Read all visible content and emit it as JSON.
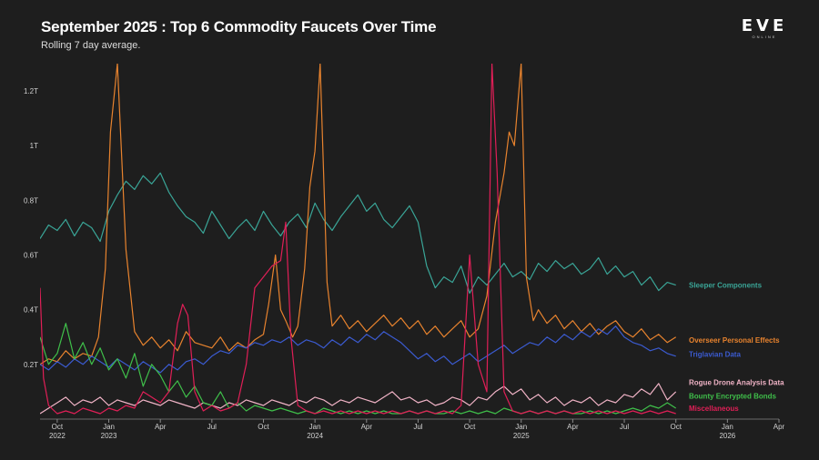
{
  "header": {
    "title": "September 2025 : Top 6 Commodity Faucets Over Time",
    "subtitle": "Rolling 7 day average."
  },
  "logo": {
    "main": "EVE",
    "sub": "ONLINE"
  },
  "chart_data": {
    "type": "line",
    "title": "September 2025 : Top 6 Commodity Faucets Over Time",
    "subtitle": "Rolling 7 day average.",
    "x_unit": "months since 2022-09-01",
    "xlim": [
      0,
      43
    ],
    "ylim": [
      0,
      1.3
    ],
    "y_unit": "trillion ISK",
    "grid": false,
    "y_ticks": [
      {
        "value": 0.2,
        "label": "0.2T"
      },
      {
        "value": 0.4,
        "label": "0.4T"
      },
      {
        "value": 0.6,
        "label": "0.6T"
      },
      {
        "value": 0.8,
        "label": "0.8T"
      },
      {
        "value": 1.0,
        "label": "1T"
      },
      {
        "value": 1.2,
        "label": "1.2T"
      }
    ],
    "x_ticks": [
      {
        "value": 1,
        "label": "Oct",
        "year": "2022"
      },
      {
        "value": 4,
        "label": "Jan",
        "year": "2023"
      },
      {
        "value": 7,
        "label": "Apr",
        "year": ""
      },
      {
        "value": 10,
        "label": "Jul",
        "year": ""
      },
      {
        "value": 13,
        "label": "Oct",
        "year": ""
      },
      {
        "value": 16,
        "label": "Jan",
        "year": "2024"
      },
      {
        "value": 19,
        "label": "Apr",
        "year": ""
      },
      {
        "value": 22,
        "label": "Jul",
        "year": ""
      },
      {
        "value": 25,
        "label": "Oct",
        "year": ""
      },
      {
        "value": 28,
        "label": "Jan",
        "year": "2025"
      },
      {
        "value": 31,
        "label": "Apr",
        "year": ""
      },
      {
        "value": 34,
        "label": "Jul",
        "year": ""
      },
      {
        "value": 37,
        "label": "Oct",
        "year": ""
      },
      {
        "value": 40,
        "label": "Jan",
        "year": "2026"
      },
      {
        "value": 43,
        "label": "Apr",
        "year": ""
      }
    ],
    "series": [
      {
        "name": "Sleeper Components",
        "color": "#3aa597",
        "x": [
          0,
          0.5,
          1,
          1.5,
          2,
          2.5,
          3,
          3.5,
          4,
          4.5,
          5,
          5.5,
          6,
          6.5,
          7,
          7.5,
          8,
          8.5,
          9,
          9.5,
          10,
          10.5,
          11,
          11.5,
          12,
          12.5,
          13,
          13.5,
          14,
          14.5,
          15,
          15.5,
          16,
          16.5,
          17,
          17.5,
          18,
          18.5,
          19,
          19.5,
          20,
          20.5,
          21,
          21.5,
          22,
          22.5,
          23,
          23.5,
          24,
          24.5,
          25,
          25.5,
          26,
          26.5,
          27,
          27.5,
          28,
          28.5,
          29,
          29.5,
          30,
          30.5,
          31,
          31.5,
          32,
          32.5,
          33,
          33.5,
          34,
          34.5,
          35,
          35.5,
          36,
          36.5,
          37
        ],
        "values": [
          0.66,
          0.71,
          0.69,
          0.73,
          0.67,
          0.72,
          0.7,
          0.65,
          0.76,
          0.82,
          0.87,
          0.84,
          0.89,
          0.86,
          0.9,
          0.83,
          0.78,
          0.74,
          0.72,
          0.68,
          0.76,
          0.71,
          0.66,
          0.7,
          0.73,
          0.69,
          0.76,
          0.71,
          0.67,
          0.72,
          0.75,
          0.7,
          0.79,
          0.73,
          0.69,
          0.74,
          0.78,
          0.82,
          0.76,
          0.79,
          0.73,
          0.7,
          0.74,
          0.78,
          0.72,
          0.56,
          0.48,
          0.52,
          0.5,
          0.56,
          0.46,
          0.52,
          0.49,
          0.53,
          0.57,
          0.52,
          0.54,
          0.51,
          0.57,
          0.54,
          0.58,
          0.55,
          0.57,
          0.53,
          0.55,
          0.59,
          0.53,
          0.56,
          0.52,
          0.54,
          0.49,
          0.52,
          0.47,
          0.5,
          0.49
        ]
      },
      {
        "name": "Overseer Personal Effects",
        "color": "#e8832e",
        "x": [
          0,
          0.5,
          1,
          1.5,
          2,
          2.5,
          3,
          3.4,
          3.8,
          4.1,
          4.5,
          5,
          5.5,
          6,
          6.5,
          7,
          7.5,
          8,
          8.5,
          9,
          9.5,
          10,
          10.5,
          11,
          11.5,
          12,
          12.5,
          13,
          13.3,
          13.7,
          14,
          14.3,
          14.7,
          15,
          15.4,
          15.7,
          16,
          16.3,
          16.7,
          17,
          17.5,
          18,
          18.5,
          19,
          19.5,
          20,
          20.5,
          21,
          21.5,
          22,
          22.5,
          23,
          23.5,
          24,
          24.5,
          25,
          25.5,
          26,
          26.5,
          27,
          27.3,
          27.6,
          28,
          28.3,
          28.7,
          29,
          29.5,
          30,
          30.5,
          31,
          31.5,
          32,
          32.5,
          33,
          33.5,
          34,
          34.5,
          35,
          35.5,
          36,
          36.5,
          37
        ],
        "values": [
          0.2,
          0.22,
          0.21,
          0.25,
          0.22,
          0.24,
          0.23,
          0.3,
          0.55,
          1.05,
          1.3,
          0.62,
          0.32,
          0.27,
          0.3,
          0.26,
          0.29,
          0.25,
          0.32,
          0.28,
          0.27,
          0.26,
          0.3,
          0.25,
          0.28,
          0.26,
          0.29,
          0.31,
          0.42,
          0.6,
          0.4,
          0.36,
          0.3,
          0.34,
          0.55,
          0.85,
          0.98,
          1.3,
          0.5,
          0.34,
          0.38,
          0.33,
          0.36,
          0.32,
          0.35,
          0.38,
          0.34,
          0.37,
          0.33,
          0.36,
          0.31,
          0.34,
          0.3,
          0.33,
          0.36,
          0.3,
          0.33,
          0.45,
          0.72,
          0.9,
          1.05,
          1.0,
          1.3,
          0.52,
          0.36,
          0.4,
          0.35,
          0.38,
          0.33,
          0.36,
          0.32,
          0.35,
          0.31,
          0.34,
          0.36,
          0.32,
          0.3,
          0.33,
          0.29,
          0.31,
          0.28,
          0.3
        ]
      },
      {
        "name": "Triglavian Data",
        "color": "#3b5bd1",
        "x": [
          0,
          0.5,
          1,
          1.5,
          2,
          2.5,
          3,
          3.5,
          4,
          4.5,
          5,
          5.5,
          6,
          6.5,
          7,
          7.5,
          8,
          8.5,
          9,
          9.5,
          10,
          10.5,
          11,
          11.5,
          12,
          12.5,
          13,
          13.5,
          14,
          14.5,
          15,
          15.5,
          16,
          16.5,
          17,
          17.5,
          18,
          18.5,
          19,
          19.5,
          20,
          20.5,
          21,
          21.5,
          22,
          22.5,
          23,
          23.5,
          24,
          24.5,
          25,
          25.5,
          26,
          26.5,
          27,
          27.5,
          28,
          28.5,
          29,
          29.5,
          30,
          30.5,
          31,
          31.5,
          32,
          32.5,
          33,
          33.5,
          34,
          34.5,
          35,
          35.5,
          36,
          36.5,
          37
        ],
        "values": [
          0.2,
          0.18,
          0.21,
          0.19,
          0.22,
          0.2,
          0.23,
          0.21,
          0.19,
          0.22,
          0.2,
          0.18,
          0.21,
          0.19,
          0.17,
          0.2,
          0.18,
          0.21,
          0.22,
          0.2,
          0.23,
          0.25,
          0.24,
          0.27,
          0.26,
          0.28,
          0.27,
          0.29,
          0.28,
          0.3,
          0.27,
          0.29,
          0.28,
          0.26,
          0.29,
          0.27,
          0.3,
          0.28,
          0.31,
          0.29,
          0.32,
          0.3,
          0.28,
          0.25,
          0.22,
          0.24,
          0.21,
          0.23,
          0.2,
          0.22,
          0.24,
          0.21,
          0.23,
          0.25,
          0.27,
          0.24,
          0.26,
          0.28,
          0.27,
          0.3,
          0.28,
          0.31,
          0.29,
          0.32,
          0.3,
          0.33,
          0.31,
          0.34,
          0.3,
          0.28,
          0.27,
          0.25,
          0.26,
          0.24,
          0.23
        ]
      },
      {
        "name": "Rogue Drone Analysis Data",
        "color": "#f0b3c6",
        "x": [
          0,
          0.5,
          1,
          1.5,
          2,
          2.5,
          3,
          3.5,
          4,
          4.5,
          5,
          5.5,
          6,
          6.5,
          7,
          7.5,
          8,
          8.5,
          9,
          9.5,
          10,
          10.5,
          11,
          11.5,
          12,
          12.5,
          13,
          13.5,
          14,
          14.5,
          15,
          15.5,
          16,
          16.5,
          17,
          17.5,
          18,
          18.5,
          19,
          19.5,
          20,
          20.5,
          21,
          21.5,
          22,
          22.5,
          23,
          23.5,
          24,
          24.5,
          25,
          25.5,
          26,
          26.5,
          27,
          27.5,
          28,
          28.5,
          29,
          29.5,
          30,
          30.5,
          31,
          31.5,
          32,
          32.5,
          33,
          33.5,
          34,
          34.5,
          35,
          35.5,
          36,
          36.5,
          37
        ],
        "values": [
          0.02,
          0.04,
          0.06,
          0.08,
          0.05,
          0.07,
          0.06,
          0.08,
          0.05,
          0.07,
          0.06,
          0.05,
          0.07,
          0.06,
          0.05,
          0.07,
          0.06,
          0.05,
          0.04,
          0.06,
          0.05,
          0.04,
          0.06,
          0.05,
          0.07,
          0.06,
          0.05,
          0.07,
          0.06,
          0.05,
          0.07,
          0.06,
          0.08,
          0.07,
          0.05,
          0.07,
          0.06,
          0.08,
          0.07,
          0.06,
          0.08,
          0.1,
          0.07,
          0.08,
          0.06,
          0.07,
          0.05,
          0.06,
          0.08,
          0.07,
          0.05,
          0.08,
          0.07,
          0.1,
          0.12,
          0.09,
          0.11,
          0.07,
          0.09,
          0.06,
          0.08,
          0.05,
          0.07,
          0.06,
          0.08,
          0.05,
          0.07,
          0.06,
          0.09,
          0.08,
          0.11,
          0.09,
          0.13,
          0.07,
          0.1
        ]
      },
      {
        "name": "Bounty Encrypted Bonds",
        "color": "#3fbf4a",
        "x": [
          0,
          0.5,
          1,
          1.5,
          2,
          2.5,
          3,
          3.5,
          4,
          4.5,
          5,
          5.5,
          6,
          6.5,
          7,
          7.5,
          8,
          8.5,
          9,
          9.5,
          10,
          10.5,
          11,
          11.5,
          12,
          12.5,
          13,
          13.5,
          14,
          14.5,
          15,
          15.5,
          16,
          16.5,
          17,
          17.5,
          18,
          18.5,
          19,
          19.5,
          20,
          20.5,
          21,
          21.5,
          22,
          22.5,
          23,
          23.5,
          24,
          24.5,
          25,
          25.5,
          26,
          26.5,
          27,
          27.5,
          28,
          28.5,
          29,
          29.5,
          30,
          30.5,
          31,
          31.5,
          32,
          32.5,
          33,
          33.5,
          34,
          34.5,
          35,
          35.5,
          36,
          36.5,
          37
        ],
        "values": [
          0.3,
          0.2,
          0.24,
          0.35,
          0.22,
          0.28,
          0.2,
          0.26,
          0.18,
          0.22,
          0.15,
          0.24,
          0.12,
          0.2,
          0.16,
          0.1,
          0.14,
          0.08,
          0.12,
          0.06,
          0.05,
          0.1,
          0.04,
          0.06,
          0.03,
          0.05,
          0.04,
          0.03,
          0.04,
          0.03,
          0.02,
          0.03,
          0.02,
          0.04,
          0.03,
          0.02,
          0.03,
          0.02,
          0.03,
          0.02,
          0.03,
          0.02,
          0.02,
          0.03,
          0.02,
          0.03,
          0.02,
          0.02,
          0.03,
          0.02,
          0.03,
          0.02,
          0.03,
          0.02,
          0.04,
          0.03,
          0.02,
          0.03,
          0.02,
          0.03,
          0.02,
          0.03,
          0.02,
          0.02,
          0.03,
          0.02,
          0.03,
          0.02,
          0.03,
          0.04,
          0.03,
          0.05,
          0.04,
          0.06,
          0.04
        ]
      },
      {
        "name": "Miscellaneous",
        "color": "#e01f57",
        "x": [
          0,
          0.2,
          0.5,
          1,
          1.5,
          2,
          2.5,
          3,
          3.5,
          4,
          4.5,
          5,
          5.5,
          6,
          6.5,
          7,
          7.5,
          8,
          8.3,
          8.6,
          9,
          9.5,
          10,
          10.5,
          11,
          11.5,
          12,
          12.5,
          13,
          13.5,
          14,
          14.3,
          14.6,
          15,
          15.5,
          16,
          16.5,
          17,
          17.5,
          18,
          18.5,
          19,
          19.5,
          20,
          20.5,
          21,
          21.5,
          22,
          22.5,
          23,
          23.5,
          24,
          24.5,
          25,
          25.5,
          26,
          26.3,
          26.6,
          27,
          27.5,
          28,
          28.5,
          29,
          29.5,
          30,
          30.5,
          31,
          31.5,
          32,
          32.5,
          33,
          33.5,
          34,
          34.5,
          35,
          35.5,
          36,
          36.5,
          37
        ],
        "values": [
          0.48,
          0.15,
          0.05,
          0.02,
          0.03,
          0.02,
          0.04,
          0.03,
          0.02,
          0.04,
          0.03,
          0.05,
          0.04,
          0.1,
          0.08,
          0.06,
          0.1,
          0.35,
          0.42,
          0.38,
          0.1,
          0.03,
          0.05,
          0.03,
          0.04,
          0.06,
          0.2,
          0.48,
          0.52,
          0.56,
          0.58,
          0.72,
          0.3,
          0.05,
          0.03,
          0.02,
          0.03,
          0.02,
          0.03,
          0.02,
          0.03,
          0.02,
          0.03,
          0.02,
          0.03,
          0.02,
          0.03,
          0.02,
          0.03,
          0.02,
          0.03,
          0.02,
          0.05,
          0.6,
          0.2,
          0.1,
          1.3,
          0.9,
          0.1,
          0.03,
          0.02,
          0.03,
          0.02,
          0.03,
          0.02,
          0.03,
          0.02,
          0.03,
          0.02,
          0.03,
          0.02,
          0.03,
          0.02,
          0.03,
          0.02,
          0.03,
          0.02,
          0.03,
          0.02
        ]
      }
    ],
    "legend": [
      {
        "name": "Sleeper Components",
        "color": "#3aa597",
        "y_value": 0.49
      },
      {
        "name": "Overseer Personal Effects",
        "color": "#e8832e",
        "y_value": 0.29
      },
      {
        "name": "Triglavian Data",
        "color": "#3b5bd1",
        "y_value": 0.237
      },
      {
        "name": "Rogue Drone Analysis Data",
        "color": "#f0b3c6",
        "y_value": 0.135
      },
      {
        "name": "Bounty Encrypted Bonds",
        "color": "#3fbf4a",
        "y_value": 0.085
      },
      {
        "name": "Miscellaneous",
        "color": "#e01f57",
        "y_value": 0.04
      }
    ]
  }
}
